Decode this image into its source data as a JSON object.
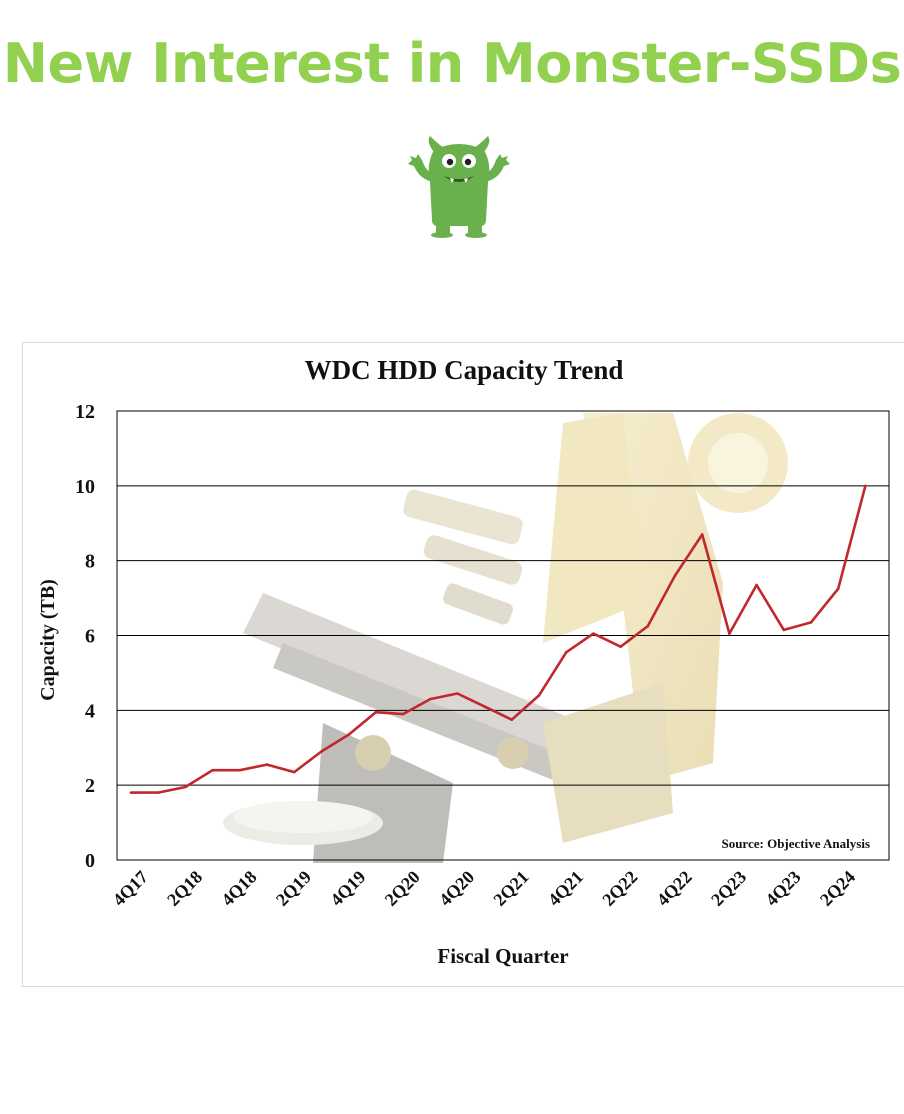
{
  "slide": {
    "title": "New Interest in Monster-SSDs",
    "title_color": "#92d050",
    "mascot_icon": "green-monster-mascot"
  },
  "chart_data": {
    "type": "line",
    "title": "WDC HDD Capacity Trend",
    "xlabel": "Fiscal Quarter",
    "ylabel": "Capacity (TB)",
    "ylim": [
      0,
      12
    ],
    "yticks": [
      0,
      2,
      4,
      6,
      8,
      10,
      12
    ],
    "grid": true,
    "source": "Source: Objective Analysis",
    "tick_labels": [
      "4Q17",
      "2Q18",
      "4Q18",
      "2Q19",
      "4Q19",
      "2Q20",
      "4Q20",
      "2Q21",
      "4Q21",
      "2Q22",
      "4Q22",
      "2Q23",
      "4Q23",
      "2Q24"
    ],
    "x": [
      "4Q17",
      "1Q18",
      "2Q18",
      "3Q18",
      "4Q18",
      "1Q19",
      "2Q19",
      "3Q19",
      "4Q19",
      "1Q20",
      "2Q20",
      "3Q20",
      "4Q20",
      "1Q21",
      "2Q21",
      "3Q21",
      "4Q21",
      "1Q22",
      "2Q22",
      "3Q22",
      "4Q22",
      "1Q23",
      "2Q23",
      "3Q23",
      "4Q23",
      "1Q24",
      "2Q24",
      "3Q24"
    ],
    "series": [
      {
        "color": "#c0282d",
        "values": [
          1.8,
          1.8,
          1.95,
          2.4,
          2.4,
          2.55,
          2.35,
          2.9,
          3.35,
          3.95,
          3.9,
          4.3,
          4.45,
          4.1,
          3.75,
          4.4,
          5.55,
          6.05,
          5.7,
          6.25,
          7.6,
          8.7,
          6.05,
          7.35,
          6.15,
          6.35,
          7.25,
          10.0
        ]
      }
    ],
    "background_image": "microscope-watermark"
  }
}
